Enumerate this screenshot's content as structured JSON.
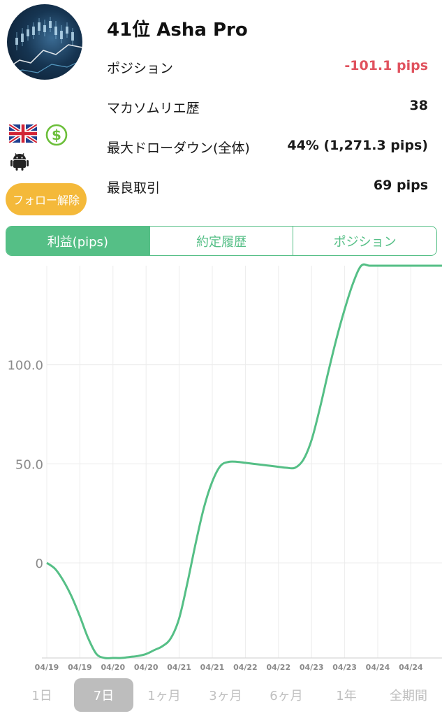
{
  "trader": {
    "title": "41位 Asha Pro",
    "follow_label": "フォロー解除"
  },
  "icons": {
    "flag": "uk-flag-icon",
    "currency": "dollar-icon",
    "platform": "android-icon"
  },
  "stats": [
    {
      "label": "ポジション",
      "value": "-101.1 pips",
      "negative": true
    },
    {
      "label": "マカソムリエ歴",
      "value": "38",
      "negative": false
    },
    {
      "label": "最大ドローダウン(全体)",
      "value": "44% (1,271.3 pips)",
      "negative": false
    },
    {
      "label": "最良取引",
      "value": "69 pips",
      "negative": false
    }
  ],
  "tabs": [
    {
      "label": "利益(pips)",
      "active": true
    },
    {
      "label": "約定履歴",
      "active": false
    },
    {
      "label": "ポジション",
      "active": false
    }
  ],
  "chart_data": {
    "type": "line",
    "y_tick_labels": [
      "100.0",
      "50.0",
      "0"
    ],
    "y_ticks": [
      100,
      50,
      0
    ],
    "ylim": [
      -48,
      150
    ],
    "x_tick_labels": [
      "04/19",
      "04/19",
      "04/20",
      "04/20",
      "04/21",
      "04/21",
      "04/22",
      "04/22",
      "04/23",
      "04/23",
      "04/24",
      "04/24"
    ],
    "series": [
      {
        "color": "#55bf86",
        "x": [
          0,
          0.25,
          0.5,
          0.75,
          1,
          1.25,
          1.5,
          1.75,
          2,
          2.25,
          2.5,
          2.75,
          3,
          3.25,
          3.5,
          3.75,
          4,
          4.25,
          4.5,
          4.75,
          5,
          5.25,
          5.5,
          5.75,
          6,
          6.25,
          6.5,
          6.75,
          7,
          7.25,
          7.5,
          7.75,
          8,
          8.25,
          8.5,
          8.75,
          9,
          9.25,
          9.5,
          9.75,
          10,
          10.5,
          11,
          11.5,
          12
        ],
        "values": [
          0,
          -3,
          -9,
          -17,
          -27,
          -38,
          -46,
          -48,
          -48,
          -48,
          -47.5,
          -47,
          -46,
          -44,
          -42,
          -38,
          -28,
          -10,
          10,
          28,
          41,
          49,
          51,
          51,
          50.5,
          50,
          49.5,
          49,
          48.5,
          48,
          48,
          52,
          62,
          78,
          96,
          113,
          128,
          141,
          150,
          150,
          150,
          150,
          150,
          150,
          150
        ]
      }
    ],
    "grid": true,
    "xlabel": "",
    "ylabel": ""
  },
  "periods": [
    {
      "label": "1日",
      "active": false
    },
    {
      "label": "7日",
      "active": true
    },
    {
      "label": "1ヶ月",
      "active": false
    },
    {
      "label": "3ヶ月",
      "active": false
    },
    {
      "label": "6ヶ月",
      "active": false
    },
    {
      "label": "1年",
      "active": false
    },
    {
      "label": "全期間",
      "active": false
    }
  ]
}
